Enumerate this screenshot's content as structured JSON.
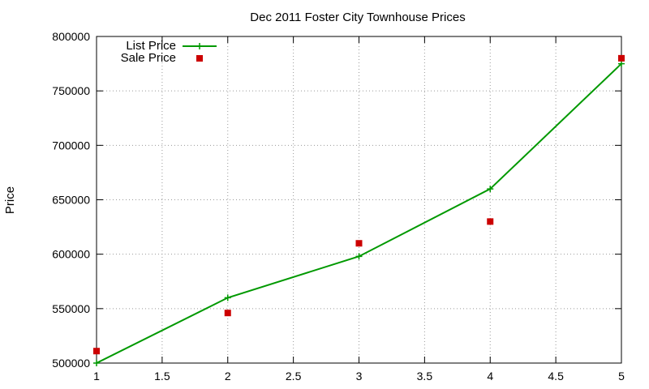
{
  "chart_data": {
    "type": "line",
    "title": "Dec 2011 Foster City Townhouse Prices",
    "xlabel": "",
    "ylabel": "Price",
    "xlim": [
      1,
      5
    ],
    "ylim": [
      500000,
      800000
    ],
    "xticks": [
      "1",
      "1.5",
      "2",
      "2.5",
      "3",
      "3.5",
      "4",
      "4.5",
      "5"
    ],
    "yticks": [
      "500000",
      "550000",
      "600000",
      "650000",
      "700000",
      "750000",
      "800000"
    ],
    "grid": true,
    "legend_position": "top-left",
    "series": [
      {
        "name": "List Price",
        "type": "line",
        "marker": "plus",
        "color": "#009900",
        "x": [
          1,
          2,
          3,
          4,
          5
        ],
        "y": [
          500000,
          560000,
          598000,
          660000,
          775000
        ]
      },
      {
        "name": "Sale Price",
        "type": "scatter",
        "marker": "square",
        "color": "#cc0000",
        "x": [
          1,
          2,
          3,
          4,
          5
        ],
        "y": [
          511000,
          546000,
          610000,
          630000,
          780000
        ]
      }
    ]
  }
}
